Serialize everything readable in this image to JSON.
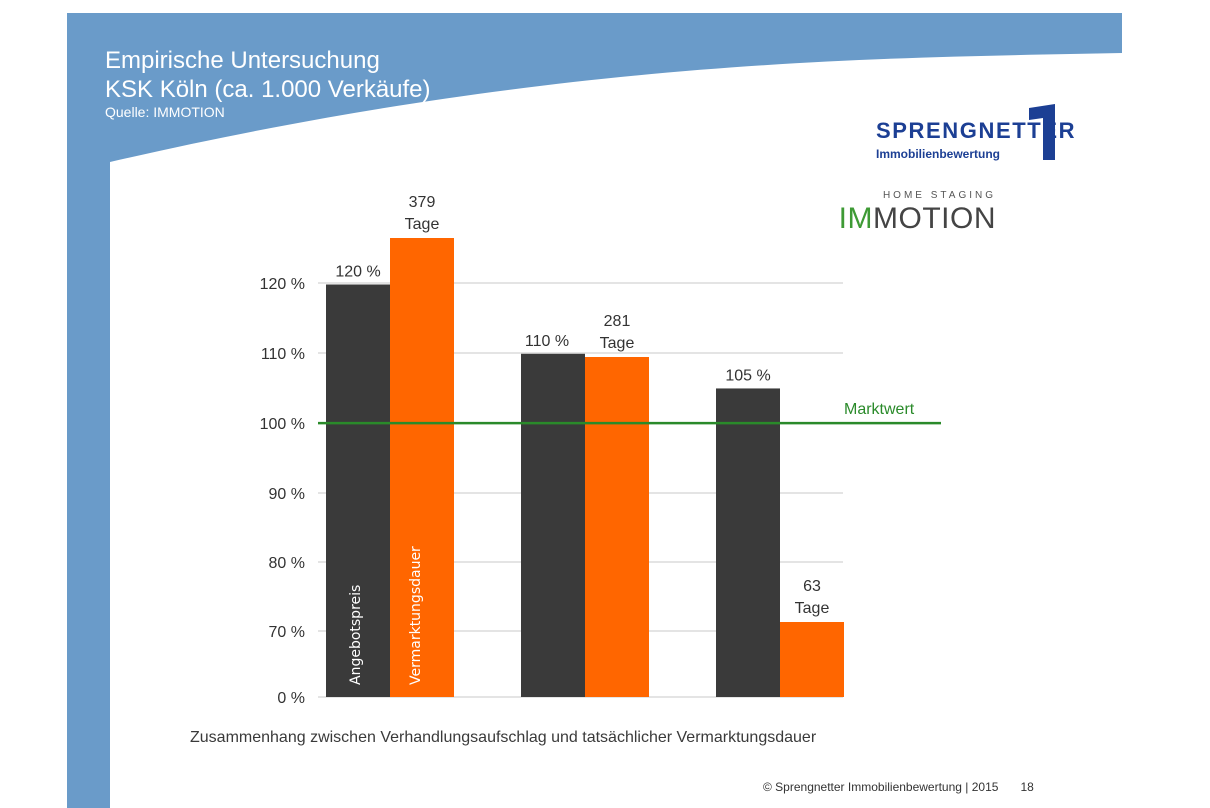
{
  "slide": {
    "title_line1": "Empirische Untersuchung",
    "title_line2": "KSK Köln (ca. 1.000 Verkäufe)",
    "source": "Quelle: IMMOTION",
    "footer": "© Sprengnetter Immobilienbewertung | 2015",
    "page_number": "18",
    "colors": {
      "banner": "#6a9bc9",
      "bar_dark": "#3a3a3a",
      "bar_orange": "#ff6600",
      "reference_line": "#2a8a2a"
    }
  },
  "logos": {
    "sprengnetter_name": "SPRENGNETTER",
    "sprengnetter_sub": "Immobilienbewertung",
    "immotion_small": "HOME STAGING",
    "immotion_accent": "IM",
    "immotion_rest": "MOTION"
  },
  "chart_data": {
    "type": "bar",
    "title": "",
    "caption": "Zusammenhang zwischen Verhandlungsaufschlag und tatsächlicher Vermarktungsdauer",
    "y_tick_labels": [
      "0 %",
      "70 %",
      "80 %",
      "90 %",
      "100 %",
      "110 %",
      "120 %"
    ],
    "y_axis_break": "0 % to 70 %",
    "ylim": [
      65,
      127
    ],
    "grid": true,
    "reference_line": {
      "label": "Marktwert",
      "value": 100
    },
    "groups": [
      {
        "dark_bar": {
          "value": 120,
          "label": "120 %",
          "inner_label": "Angebotspreis"
        },
        "orange_bar": {
          "days": 379,
          "label_value": "379",
          "label_unit": "Tage",
          "inner_label": "Vermarktungsdauer"
        }
      },
      {
        "dark_bar": {
          "value": 110,
          "label": "110 %"
        },
        "orange_bar": {
          "days": 281,
          "label_value": "281",
          "label_unit": "Tage"
        }
      },
      {
        "dark_bar": {
          "value": 105,
          "label": "105 %"
        },
        "orange_bar": {
          "days": 63,
          "label_value": "63",
          "label_unit": "Tage"
        }
      }
    ]
  }
}
